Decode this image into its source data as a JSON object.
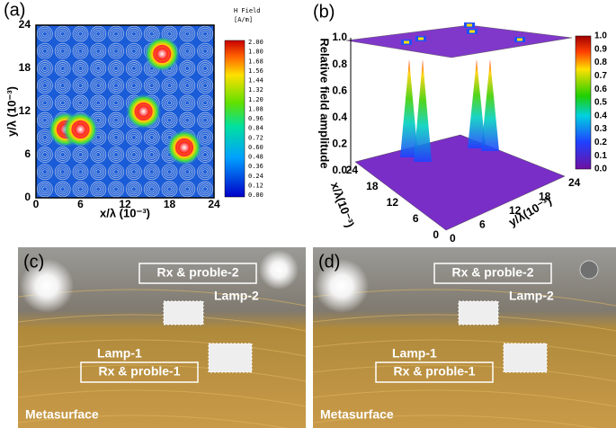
{
  "panels": [
    {
      "label": "(a)",
      "x_label": "x/λ (10⁻³)",
      "y_label": "y/λ (10⁻³)",
      "xticks": [
        "0",
        "6",
        "12",
        "18",
        "24"
      ],
      "yticks": [
        "0",
        "6",
        "12",
        "18",
        "24"
      ],
      "colorbar_title": "H Field",
      "colorbar_unit": "[A/m]",
      "colorbar_ticks": [
        "2.00",
        "1.80",
        "1.68",
        "1.56",
        "1.44",
        "1.32",
        "1.20",
        "1.08",
        "0.96",
        "0.84",
        "0.72",
        "0.60",
        "0.48",
        "0.36",
        "0.24",
        "0.12",
        "0.00"
      ]
    },
    {
      "label": "(b)",
      "z_label": "Relative field amplitude",
      "x_label": "x/λ(10⁻³)",
      "y_label": "y/λ(10⁻³)",
      "zticks": [
        "1.0",
        "0.8",
        "0.6",
        "0.4",
        "0.2",
        "0.0"
      ],
      "xticks": [
        "24",
        "18",
        "12",
        "6",
        "0"
      ],
      "yticks": [
        "0",
        "6",
        "12",
        "18",
        "24"
      ],
      "colorbar_ticks": [
        "1.0",
        "0.9",
        "0.8",
        "0.7",
        "0.6",
        "0.5",
        "0.4",
        "0.3",
        "0.2",
        "0.1",
        "0.0"
      ]
    },
    {
      "label": "(c)",
      "rx2": "Rx & proble-2",
      "lamp2": "Lamp-2",
      "lamp1": "Lamp-1",
      "rx1": "Rx & proble-1",
      "surface": "Metasurface"
    },
    {
      "label": "(d)",
      "rx2": "Rx & proble-2",
      "lamp2": "Lamp-2",
      "lamp1": "Lamp-1",
      "rx1": "Rx & proble-1",
      "surface": "Metasurface"
    }
  ]
}
